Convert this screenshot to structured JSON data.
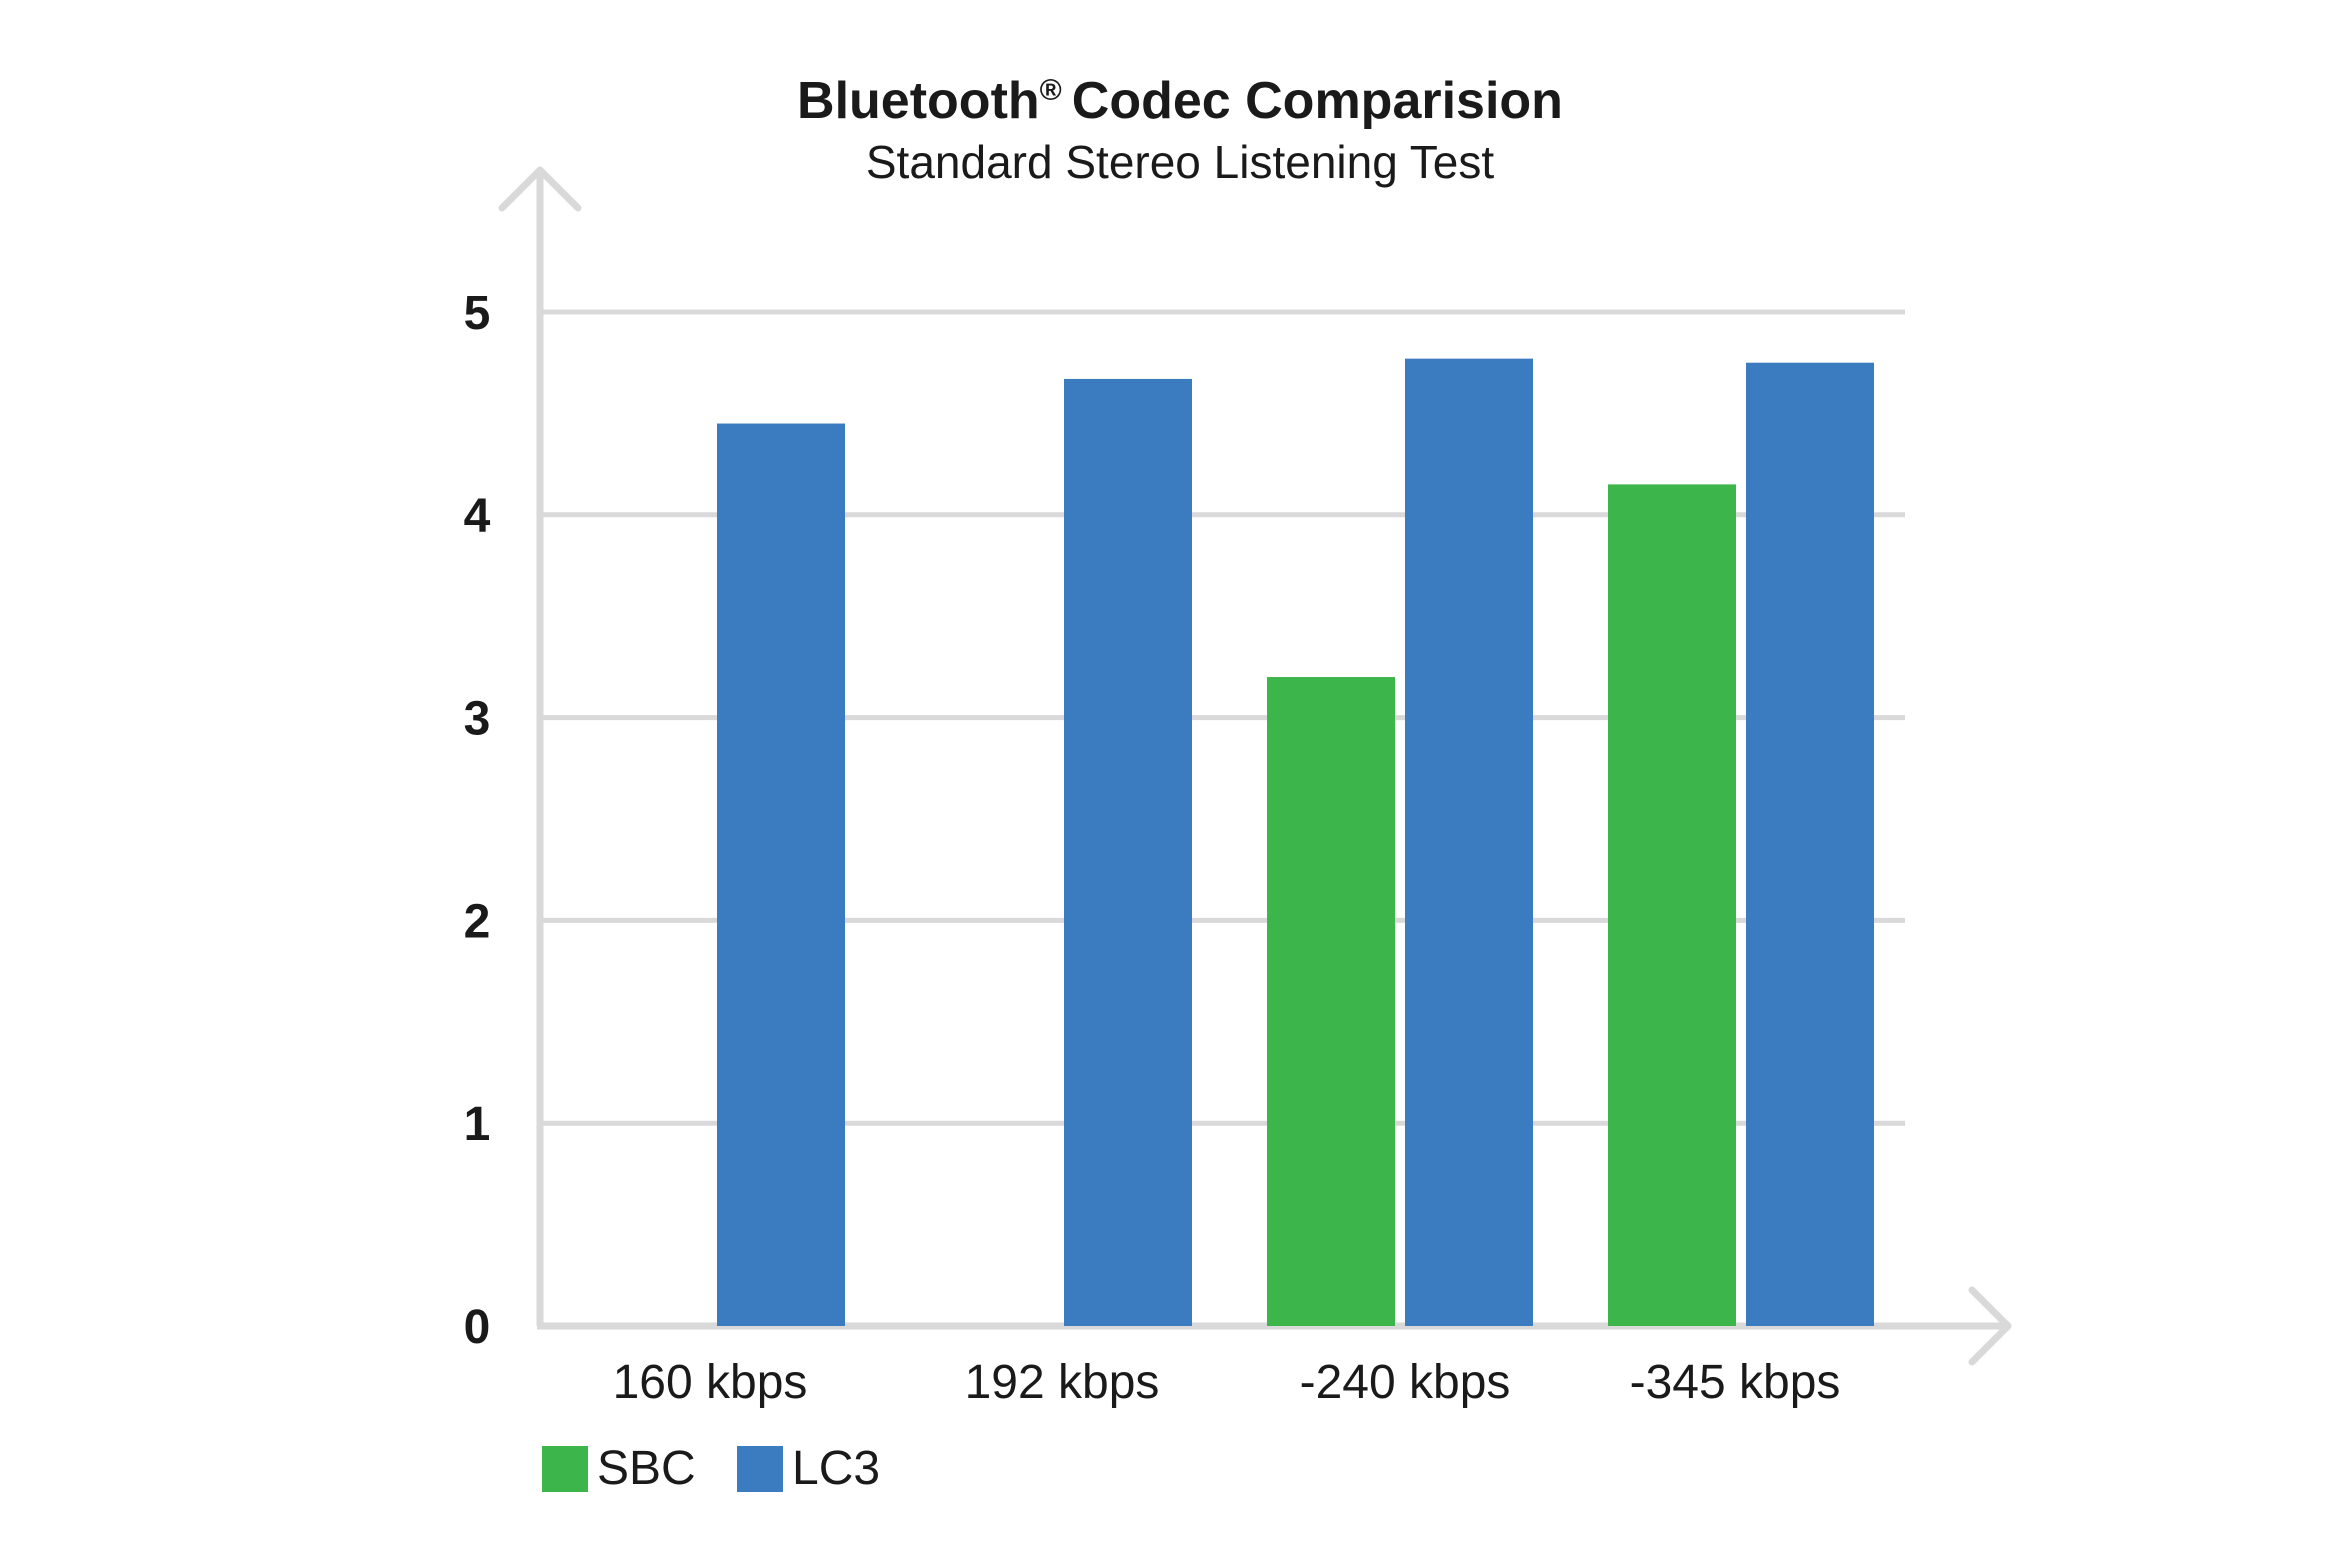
{
  "chart_data": {
    "type": "bar",
    "title": "Bluetooth",
    "title_mark": "®",
    "title_rest": "Codec Comparision",
    "subtitle": "Standard Stereo Listening Test",
    "categories": [
      "160 kbps",
      "192 kbps",
      "-240 kbps",
      "-345 kbps"
    ],
    "series": [
      {
        "name": "SBC",
        "values": [
          null,
          null,
          3.2,
          4.15
        ],
        "color": "#3cb64a"
      },
      {
        "name": "LC3",
        "values": [
          4.45,
          4.67,
          4.77,
          4.75
        ],
        "color": "#3b7bc0"
      }
    ],
    "ylim": [
      0,
      5
    ],
    "yticks": [
      "0",
      "1",
      "2",
      "3",
      "4",
      "5"
    ],
    "grid": true,
    "legend_position": "bottom-left",
    "colors": {
      "axis": "#d9d9d9",
      "grid": "#d9d9d9",
      "text": "#1a1a1a"
    }
  }
}
